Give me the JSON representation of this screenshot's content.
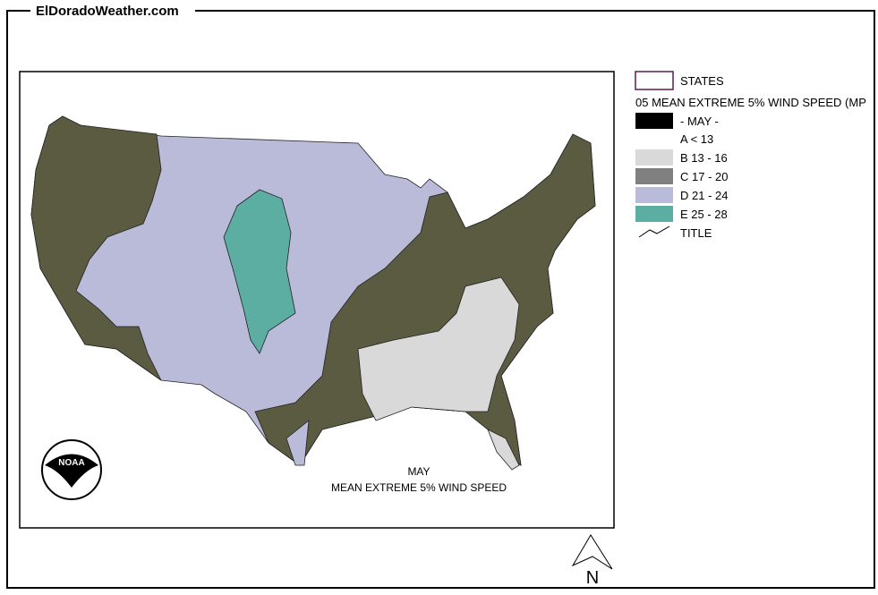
{
  "header": {
    "title": "ElDoradoWeather.com"
  },
  "legend": {
    "states": "STATES",
    "layer": "05 MEAN EXTREME 5% WIND SPEED (MP",
    "month": "- MAY -",
    "month_color": "#000000",
    "classes": [
      {
        "label": "A < 13",
        "color": "#ffffff"
      },
      {
        "label": "B 13 - 16",
        "color": "#d9d9d9"
      },
      {
        "label": "C 17 - 20",
        "color": "#808080"
      },
      {
        "label": "D 21 - 24",
        "color": "#babad9"
      },
      {
        "label": "E 25 - 28",
        "color": "#5cada2"
      }
    ],
    "title_entry": "TITLE"
  },
  "map": {
    "caption_1": "MAY",
    "caption_2": "MEAN EXTREME 5% WIND SPEED",
    "logo": "NOAA",
    "north": "N"
  }
}
